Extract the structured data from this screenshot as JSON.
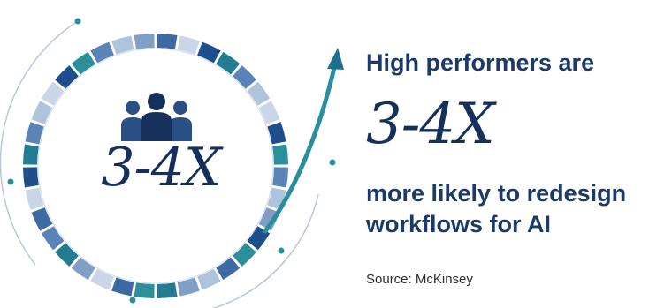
{
  "graphic": {
    "icon": "people-group-icon",
    "center_stat": "3-4X",
    "arrow_icon": "arrow-up-right-icon",
    "ring_colors": [
      "#3d6aa3",
      "#7f9fc6",
      "#2a8f9b",
      "#aec4de",
      "#1d4f8c",
      "#5a83b7",
      "#c8d6e8",
      "#247c93"
    ]
  },
  "text": {
    "headline": "High performers are",
    "big_stat": "3-4X",
    "subline_1": "more likely to redesign",
    "subline_2": "workflows for AI",
    "source": "Source: McKinsey"
  },
  "colors": {
    "navy": "#16305c",
    "text_blue": "#1b3a66",
    "teal": "#2a8f9b"
  }
}
